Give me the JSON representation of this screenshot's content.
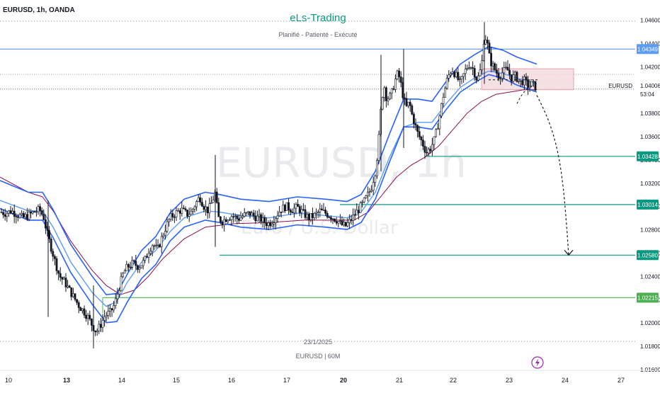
{
  "header": {
    "symbol_info": "EURUSD, 1h, OANDA",
    "brand": "eLs-Trading",
    "tagline": "Planifié - Patienté - Exécuté"
  },
  "watermark": {
    "symbol": "EURUSD, 1h",
    "name": "Euro / U.S. Dollar"
  },
  "footer": {
    "date_label": "23/1/2025",
    "caption": "EURUSD | 60M"
  },
  "price_tag": {
    "symbol": "EURUSD",
    "price": "1.04006",
    "countdown": "53:04"
  },
  "colors": {
    "up_candle": "#131722",
    "down_candle": "#131722",
    "ema_blue": "#2962ff",
    "ema_light": "#5b9cf6",
    "ema_red": "#880e4f",
    "level_green": "#089981",
    "level_green_light": "#4caf50",
    "resistance_blue": "#5b9cf6",
    "zone_fill": "#f2d9dc",
    "zone_border": "#e7a1ab"
  },
  "chart_data": {
    "type": "candlestick",
    "symbol": "EURUSD",
    "timeframe": "1h",
    "broker": "OANDA",
    "y_axis": {
      "min": 1.015,
      "max": 1.0475,
      "ticks": [
        "1.04600",
        "1.04400",
        "1.04200",
        "1.04006",
        "1.03800",
        "1.03600",
        "1.03400",
        "1.03200",
        "1.03000",
        "1.02800",
        "1.02600",
        "1.02400",
        "1.02200",
        "1.02000",
        "1.01800",
        "1.01600"
      ]
    },
    "x_axis": {
      "ticks": [
        "10",
        "13",
        "14",
        "15",
        "16",
        "17",
        "20",
        "21",
        "22",
        "23",
        "24",
        "27"
      ],
      "bold_ticks": [
        "13",
        "20"
      ]
    },
    "levels": [
      {
        "price": "1.04349",
        "value": 1.04349,
        "kind": "resistance",
        "color": "#5b9cf6"
      },
      {
        "price": "1.03428",
        "value": 1.03428,
        "kind": "support",
        "color": "#089981"
      },
      {
        "price": "1.03014",
        "value": 1.03014,
        "kind": "support",
        "color": "#089981"
      },
      {
        "price": "1.02580",
        "value": 1.0258,
        "kind": "target",
        "color": "#089981"
      },
      {
        "price": "1.02215",
        "value": 1.02215,
        "kind": "support",
        "color": "#4caf50"
      }
    ],
    "current_price": 1.04006,
    "sell_zone": {
      "from": 1.04,
      "to": 1.0418
    },
    "projection": {
      "from": 1.04,
      "to": 1.0258
    },
    "close_path": [
      [
        0,
        1.0295
      ],
      [
        8,
        1.0294
      ],
      [
        16,
        1.0296
      ],
      [
        24,
        1.0293
      ],
      [
        32,
        1.029
      ],
      [
        40,
        1.0292
      ],
      [
        48,
        1.0295
      ],
      [
        56,
        1.0297
      ],
      [
        62,
        1.029
      ],
      [
        66,
        1.0278
      ],
      [
        72,
        1.0265
      ],
      [
        78,
        1.0252
      ],
      [
        84,
        1.024
      ],
      [
        90,
        1.0236
      ],
      [
        98,
        1.0228
      ],
      [
        104,
        1.0222
      ],
      [
        108,
        1.0218
      ],
      [
        112,
        1.0214
      ],
      [
        118,
        1.021
      ],
      [
        124,
        1.0205
      ],
      [
        130,
        1.0198
      ],
      [
        136,
        1.0192
      ],
      [
        142,
        1.0198
      ],
      [
        148,
        1.0206
      ],
      [
        156,
        1.0209
      ],
      [
        162,
        1.0216
      ],
      [
        168,
        1.023
      ],
      [
        174,
        1.0242
      ],
      [
        180,
        1.0248
      ],
      [
        188,
        1.0251
      ],
      [
        196,
        1.0248
      ],
      [
        204,
        1.0253
      ],
      [
        210,
        1.0262
      ],
      [
        216,
        1.0268
      ],
      [
        222,
        1.0262
      ],
      [
        228,
        1.0272
      ],
      [
        234,
        1.0282
      ],
      [
        240,
        1.029
      ],
      [
        248,
        1.0294
      ],
      [
        256,
        1.0297
      ],
      [
        264,
        1.0293
      ],
      [
        270,
        1.0295
      ],
      [
        276,
        1.0302
      ],
      [
        282,
        1.0308
      ],
      [
        288,
        1.03
      ],
      [
        294,
        1.0296
      ],
      [
        300,
        1.0305
      ],
      [
        304,
        1.0312
      ],
      [
        308,
        1.029
      ],
      [
        314,
        1.0287
      ],
      [
        320,
        1.029
      ],
      [
        328,
        1.0292
      ],
      [
        336,
        1.0289
      ],
      [
        344,
        1.0292
      ],
      [
        352,
        1.0294
      ],
      [
        360,
        1.0291
      ],
      [
        368,
        1.0289
      ],
      [
        374,
        1.0286
      ],
      [
        380,
        1.0285
      ],
      [
        388,
        1.029
      ],
      [
        396,
        1.0297
      ],
      [
        404,
        1.03
      ],
      [
        412,
        1.0297
      ],
      [
        420,
        1.0299
      ],
      [
        428,
        1.0294
      ],
      [
        436,
        1.029
      ],
      [
        444,
        1.0292
      ],
      [
        452,
        1.0296
      ],
      [
        460,
        1.0294
      ],
      [
        468,
        1.0291
      ],
      [
        476,
        1.0288
      ],
      [
        482,
        1.0284
      ],
      [
        488,
        1.0283
      ],
      [
        494,
        1.0287
      ],
      [
        500,
        1.0292
      ],
      [
        506,
        1.0297
      ],
      [
        512,
        1.0302
      ],
      [
        518,
        1.0308
      ],
      [
        524,
        1.0315
      ],
      [
        530,
        1.033
      ],
      [
        534,
        1.035
      ],
      [
        538,
        1.0385
      ],
      [
        542,
        1.0405
      ],
      [
        546,
        1.0392
      ],
      [
        552,
        1.0395
      ],
      [
        558,
        1.0408
      ],
      [
        562,
        1.0415
      ],
      [
        566,
        1.0405
      ],
      [
        570,
        1.0392
      ],
      [
        574,
        1.0385
      ],
      [
        578,
        1.0389
      ],
      [
        582,
        1.0378
      ],
      [
        586,
        1.037
      ],
      [
        590,
        1.0362
      ],
      [
        596,
        1.0355
      ],
      [
        602,
        1.0346
      ],
      [
        608,
        1.035
      ],
      [
        614,
        1.0358
      ],
      [
        620,
        1.0375
      ],
      [
        626,
        1.0395
      ],
      [
        632,
        1.041
      ],
      [
        638,
        1.0418
      ],
      [
        644,
        1.0412
      ],
      [
        650,
        1.0405
      ],
      [
        656,
        1.0415
      ],
      [
        662,
        1.0422
      ],
      [
        668,
        1.0418
      ],
      [
        674,
        1.0408
      ],
      [
        680,
        1.042
      ],
      [
        684,
        1.0448
      ],
      [
        688,
        1.044
      ],
      [
        692,
        1.0425
      ],
      [
        698,
        1.0418
      ],
      [
        704,
        1.0412
      ],
      [
        710,
        1.0415
      ],
      [
        716,
        1.0418
      ],
      [
        722,
        1.041
      ],
      [
        728,
        1.0412
      ],
      [
        734,
        1.0406
      ],
      [
        740,
        1.0408
      ],
      [
        746,
        1.0403
      ],
      [
        752,
        1.0405
      ],
      [
        758,
        1.0401
      ]
    ],
    "ema_blue_path": [
      [
        0,
        1.031
      ],
      [
        40,
        1.03
      ],
      [
        60,
        1.03
      ],
      [
        75,
        1.0285
      ],
      [
        100,
        1.0255
      ],
      [
        130,
        1.0228
      ],
      [
        150,
        1.0212
      ],
      [
        165,
        1.0213
      ],
      [
        180,
        1.023
      ],
      [
        200,
        1.025
      ],
      [
        220,
        1.0262
      ],
      [
        240,
        1.0282
      ],
      [
        260,
        1.0294
      ],
      [
        290,
        1.03
      ],
      [
        310,
        1.0298
      ],
      [
        340,
        1.0294
      ],
      [
        380,
        1.0292
      ],
      [
        420,
        1.0296
      ],
      [
        460,
        1.0294
      ],
      [
        490,
        1.0292
      ],
      [
        510,
        1.0298
      ],
      [
        530,
        1.0318
      ],
      [
        550,
        1.035
      ],
      [
        570,
        1.038
      ],
      [
        590,
        1.038
      ],
      [
        610,
        1.0378
      ],
      [
        630,
        1.0395
      ],
      [
        650,
        1.041
      ],
      [
        670,
        1.0418
      ],
      [
        690,
        1.0425
      ],
      [
        710,
        1.0422
      ],
      [
        730,
        1.0416
      ],
      [
        758,
        1.041
      ]
    ],
    "ema_light_path": [
      [
        0,
        1.0305
      ],
      [
        40,
        1.0296
      ],
      [
        60,
        1.0296
      ],
      [
        75,
        1.0282
      ],
      [
        100,
        1.0252
      ],
      [
        130,
        1.0226
      ],
      [
        150,
        1.0214
      ],
      [
        165,
        1.0218
      ],
      [
        180,
        1.0235
      ],
      [
        200,
        1.0252
      ],
      [
        220,
        1.0262
      ],
      [
        240,
        1.0278
      ],
      [
        260,
        1.029
      ],
      [
        290,
        1.0296
      ],
      [
        310,
        1.0295
      ],
      [
        340,
        1.0292
      ],
      [
        380,
        1.029
      ],
      [
        420,
        1.0294
      ],
      [
        460,
        1.0292
      ],
      [
        490,
        1.029
      ],
      [
        510,
        1.0295
      ],
      [
        530,
        1.0312
      ],
      [
        550,
        1.0342
      ],
      [
        570,
        1.0368
      ],
      [
        590,
        1.0372
      ],
      [
        610,
        1.0372
      ],
      [
        630,
        1.0388
      ],
      [
        650,
        1.0402
      ],
      [
        670,
        1.041
      ],
      [
        690,
        1.0416
      ],
      [
        710,
        1.0414
      ],
      [
        730,
        1.041
      ],
      [
        758,
        1.0405
      ]
    ],
    "ema_red_path": [
      [
        0,
        1.0325
      ],
      [
        40,
        1.0312
      ],
      [
        60,
        1.0308
      ],
      [
        75,
        1.0296
      ],
      [
        100,
        1.027
      ],
      [
        130,
        1.0245
      ],
      [
        150,
        1.0232
      ],
      [
        170,
        1.0224
      ],
      [
        190,
        1.0228
      ],
      [
        210,
        1.024
      ],
      [
        230,
        1.0255
      ],
      [
        260,
        1.0272
      ],
      [
        290,
        1.0282
      ],
      [
        330,
        1.0285
      ],
      [
        380,
        1.0286
      ],
      [
        430,
        1.0288
      ],
      [
        470,
        1.0288
      ],
      [
        500,
        1.0288
      ],
      [
        520,
        1.0295
      ],
      [
        540,
        1.031
      ],
      [
        560,
        1.0325
      ],
      [
        580,
        1.0335
      ],
      [
        600,
        1.0342
      ],
      [
        620,
        1.0352
      ],
      [
        640,
        1.0366
      ],
      [
        660,
        1.038
      ],
      [
        680,
        1.039
      ],
      [
        700,
        1.0396
      ],
      [
        720,
        1.0398
      ],
      [
        740,
        1.04
      ],
      [
        758,
        1.04
      ]
    ]
  }
}
